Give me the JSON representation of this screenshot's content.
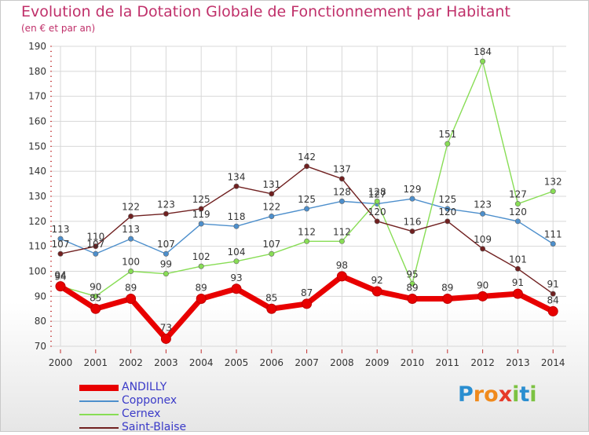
{
  "header": {
    "title": "Evolution de la Dotation Globale de Fonctionnement par Habitant",
    "subtitle": "(en € et par an)"
  },
  "logo": {
    "text": "Proxiti",
    "letters": [
      "P",
      "r",
      "o",
      "x",
      "i",
      "t",
      "i"
    ],
    "colors": [
      "#2a8ed0",
      "#f08a1c",
      "#f08a1c",
      "#e63a2a",
      "#7cc242",
      "#2a8ed0",
      "#7cc242"
    ]
  },
  "chart_data": {
    "type": "line",
    "title": "Evolution de la Dotation Globale de Fonctionnement par Habitant",
    "subtitle": "(en € et par an)",
    "x": [
      "2000",
      "2001",
      "2002",
      "2003",
      "2004",
      "2005",
      "2006",
      "2007",
      "2008",
      "2009",
      "2010",
      "2011",
      "2012",
      "2013",
      "2014"
    ],
    "ylim": [
      70,
      190
    ],
    "yticks": [
      "70",
      "80",
      "90",
      "100",
      "110",
      "120",
      "130",
      "140",
      "150",
      "160",
      "170",
      "180",
      "190"
    ],
    "grid": true,
    "legend_position": "bottom-left",
    "series": [
      {
        "name": "ANDILLY",
        "color": "#e80000",
        "values": [
          94,
          85,
          89,
          73,
          89,
          93,
          85,
          87,
          98,
          92,
          89,
          89,
          90,
          91,
          84
        ]
      },
      {
        "name": "Copponex",
        "color": "#4d8fcc",
        "values": [
          113,
          107,
          113,
          107,
          119,
          118,
          122,
          125,
          128,
          127,
          129,
          125,
          123,
          120,
          111
        ]
      },
      {
        "name": "Cernex",
        "color": "#88dd55",
        "values": [
          94,
          90,
          100,
          99,
          102,
          104,
          107,
          112,
          112,
          128,
          95,
          151,
          184,
          127,
          132
        ]
      },
      {
        "name": "Saint-Blaise",
        "color": "#702020",
        "values": [
          107,
          110,
          122,
          123,
          125,
          134,
          131,
          142,
          137,
          120,
          116,
          120,
          109,
          101,
          91
        ]
      }
    ],
    "data_labels": [
      [
        "94",
        "85",
        "89",
        "73",
        "89",
        "93",
        "85",
        "87",
        "98",
        "92",
        "89",
        "89",
        "90",
        "91",
        "84"
      ],
      [
        "113",
        "107",
        "113",
        "107",
        "119",
        "118",
        "122",
        "125",
        "128",
        "127",
        "129",
        "125",
        "123",
        "120",
        "111"
      ],
      [
        "94",
        "90",
        "100",
        "99",
        "102",
        "104",
        "107",
        "112",
        "112",
        "128",
        "95",
        "151",
        "184",
        "127",
        "132"
      ],
      [
        "107",
        "110",
        "122",
        "123",
        "125",
        "134",
        "131",
        "142",
        "137",
        "120",
        "116",
        "120",
        "109",
        "101",
        "91"
      ]
    ]
  }
}
